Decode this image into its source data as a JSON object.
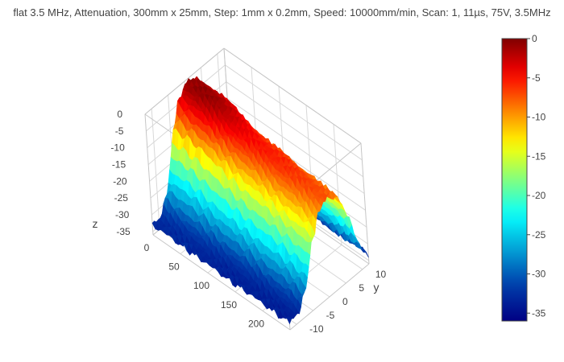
{
  "chart_data": {
    "type": "surface",
    "title": "flat 3.5 MHz, Attenuation, 300mm x 25mm, Step: 1mm x 0.2mm, Speed: 10000mm/min, Scan: 1, 11µs, 75V, 3.5MHz",
    "colorscale": "Jet",
    "xlabel": "",
    "ylabel": "y",
    "zlabel": "z",
    "xlim": [
      0,
      250
    ],
    "ylim": [
      -12,
      12
    ],
    "zlim": [
      -36,
      0
    ],
    "x_ticks": [
      0,
      50,
      100,
      150,
      200
    ],
    "y_ticks": [
      10,
      5,
      0,
      -5,
      -10
    ],
    "z_ticks": [
      0,
      -5,
      -10,
      -15,
      -20,
      -25,
      -30,
      -35
    ],
    "colorbar": {
      "ticks": [
        0,
        -5,
        -10,
        -15,
        -20,
        -25,
        -30,
        -35
      ],
      "range": [
        -36,
        0
      ]
    },
    "profile_y": {
      "y": [
        -12,
        -10,
        -8,
        -6,
        -4,
        -2,
        0,
        2,
        4,
        6,
        8,
        10,
        12
      ],
      "z": [
        -33,
        -33,
        -30,
        -22,
        -10,
        -4,
        -1,
        -1,
        -3,
        -8,
        -18,
        -28,
        -32
      ]
    },
    "profile_x": {
      "x": [
        0,
        25,
        50,
        75,
        100,
        125,
        150,
        175,
        200,
        225,
        250
      ],
      "offset": [
        0,
        0.5,
        0,
        -1.5,
        -3,
        -4,
        -4.5,
        -5,
        -5.5,
        -6,
        -6.5
      ]
    }
  }
}
